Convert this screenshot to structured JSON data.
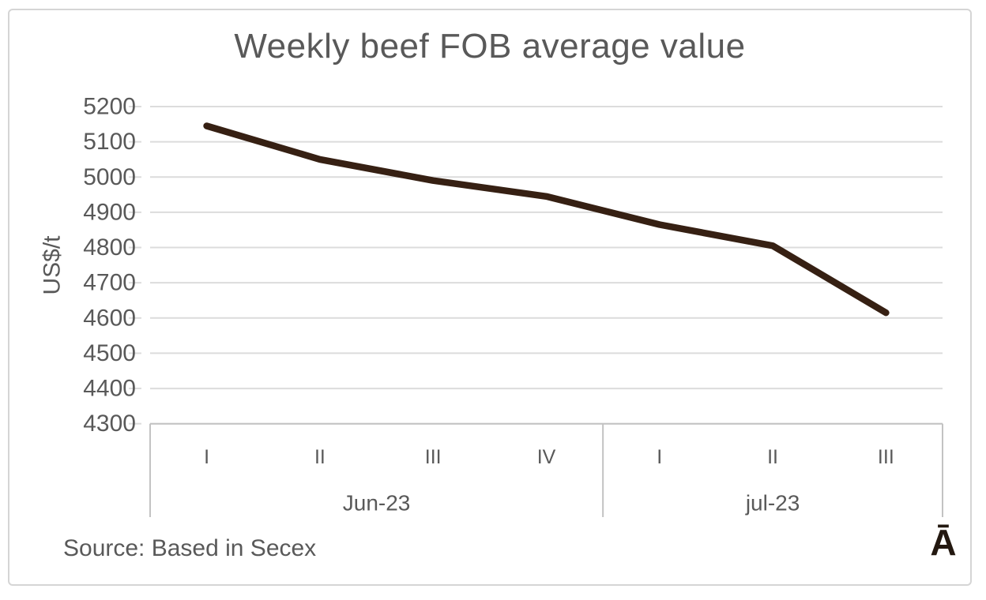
{
  "chart": {
    "title": "Weekly beef FOB average value",
    "y_axis_title": "US$/t",
    "source_note": "Source: Based in Secex",
    "watermark": "Ā"
  },
  "chart_data": {
    "type": "line",
    "title": "Weekly beef FOB average value",
    "ylabel": "US$/t",
    "xlabel": "",
    "categories": [
      "I",
      "II",
      "III",
      "IV",
      "I",
      "II",
      "III"
    ],
    "category_groups": [
      {
        "label": "Jun-23",
        "span": 4
      },
      {
        "label": "jul-23",
        "span": 3
      }
    ],
    "series": [
      {
        "name": "Weekly beef FOB average value",
        "values": [
          5145,
          5050,
          4990,
          4945,
          4865,
          4805,
          4615
        ]
      }
    ],
    "ylim": [
      4300,
      5200
    ],
    "ytick_step": 100,
    "yticks": [
      5200,
      5100,
      5000,
      4900,
      4800,
      4700,
      4600,
      4500,
      4400,
      4300
    ],
    "grid": true,
    "legend": "none",
    "source": "Source: Based in Secex",
    "watermark": "Ā",
    "colors": {
      "line": "#362013",
      "label": "#595959",
      "grid": "#dcdcdc",
      "axis": "#c3c3c3",
      "watermark": "#231810",
      "border": "#d5d5d5"
    }
  }
}
